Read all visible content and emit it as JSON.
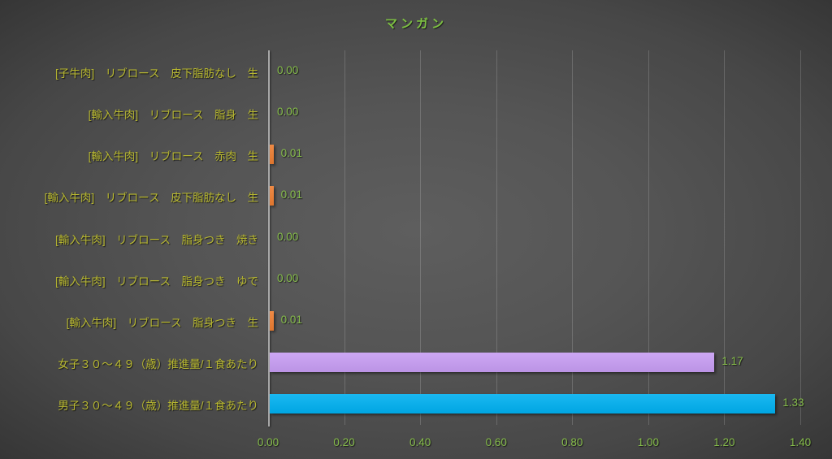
{
  "title": "マンガン",
  "colors": {
    "title_text": "#7dc142",
    "category_text": "#b9b930",
    "value_text": "#86bd4b",
    "tick_text": "#86bd4b",
    "axis_line": "#a9a9a9",
    "gridline": "rgba(215,215,215,0.22)",
    "orange_bar": "#ed7d31",
    "purple_bar": "#c79df3",
    "blue_bar": "#00b0f0"
  },
  "chart_data": {
    "type": "bar",
    "orientation": "horizontal",
    "title": "マンガン",
    "xlabel": "",
    "ylabel": "",
    "grid": true,
    "legend": false,
    "xlim": [
      0,
      1.4
    ],
    "x_tick_step": 0.2,
    "x_ticks": [
      "0.00",
      "0.20",
      "0.40",
      "0.60",
      "0.80",
      "1.00",
      "1.20",
      "1.40"
    ],
    "categories": [
      "[子牛肉]　リブロース　皮下脂肪なし　生",
      "[輸入牛肉]　リブロース　脂身　生",
      "[輸入牛肉]　リブロース　赤肉　生",
      "[輸入牛肉]　リブロース　皮下脂肪なし　生",
      "[輸入牛肉]　リブロース　脂身つき　焼き",
      "[輸入牛肉]　リブロース　脂身つき　ゆで",
      "[輸入牛肉]　リブロース　脂身つき　生",
      "女子３０～４９（歳）推進量/１食あたり",
      "男子３０～４９（歳）推進量/１食あたり"
    ],
    "values": [
      0.0,
      0.0,
      0.01,
      0.01,
      0.0,
      0.0,
      0.01,
      1.17,
      1.33
    ],
    "value_labels": [
      "0.00",
      "0.00",
      "0.01",
      "0.01",
      "0.00",
      "0.00",
      "0.01",
      "1.17",
      "1.33"
    ],
    "bar_colors": [
      "none",
      "none",
      "#ed7d31",
      "#ed7d31",
      "none",
      "none",
      "#ed7d31",
      "#c79df3",
      "#00b0f0"
    ]
  }
}
